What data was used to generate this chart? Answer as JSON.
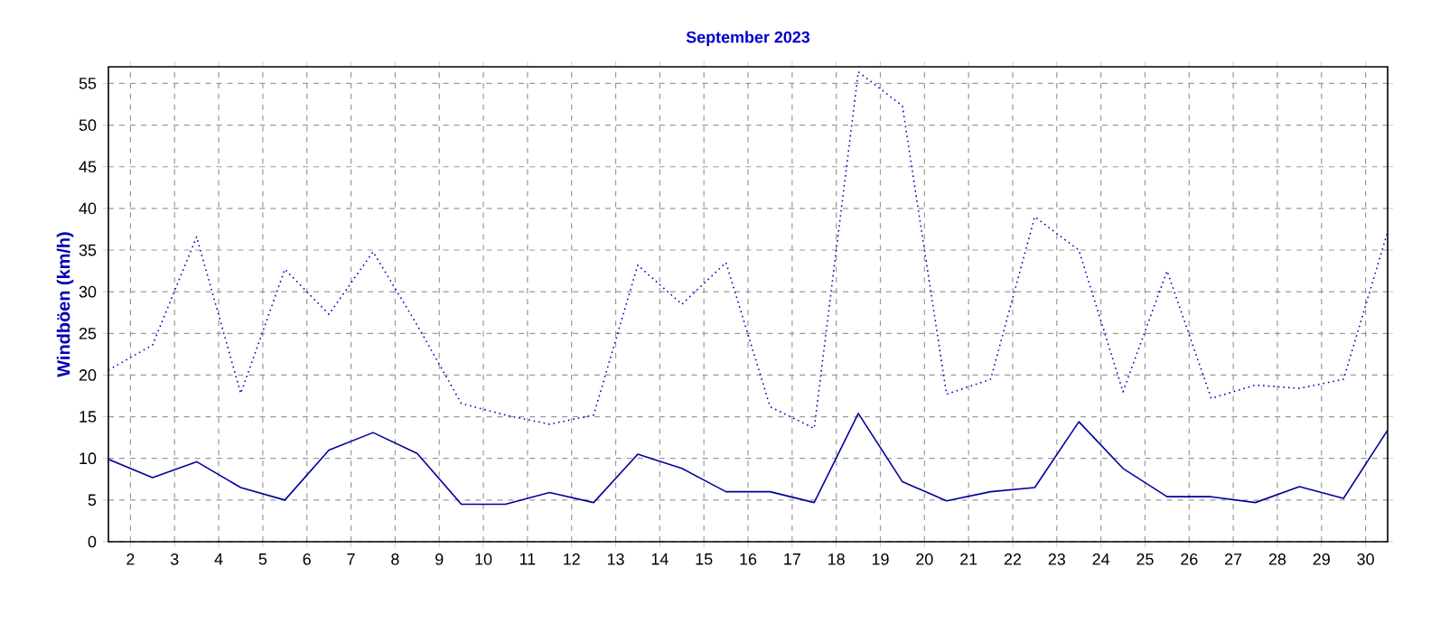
{
  "chart_data": {
    "type": "line",
    "title": "September 2023",
    "ylabel": "Windböen  (km/h)",
    "x": [
      1.5,
      2.5,
      3.5,
      4.5,
      5.5,
      6.5,
      7.5,
      8.5,
      9.5,
      10.5,
      11.5,
      12.5,
      13.5,
      14.5,
      15.5,
      16.5,
      17.5,
      18.5,
      19.5,
      20.5,
      21.5,
      22.5,
      23.5,
      24.5,
      25.5,
      26.5,
      27.5,
      28.5,
      29.5,
      30.5
    ],
    "series": [
      {
        "color": "#0000c0",
        "line_style": "dotted",
        "values": [
          20.6,
          23.6,
          36.6,
          17.8,
          32.7,
          27.3,
          34.8,
          26,
          16.6,
          15.2,
          14.1,
          15.2,
          33.2,
          28.5,
          33.5,
          16.2,
          13.6,
          56.4,
          52.3,
          17.7,
          19.5,
          39.0,
          35.0,
          18.0,
          32.5,
          17.2,
          18.8,
          18.4,
          19.5,
          37.2
        ]
      },
      {
        "color": "#00009c",
        "line_style": "solid",
        "values": [
          9.9,
          7.7,
          9.6,
          6.5,
          5.0,
          11.0,
          13.1,
          10.6,
          4.5,
          4.5,
          5.9,
          4.7,
          10.5,
          8.8,
          6.0,
          6.0,
          4.7,
          15.4,
          7.2,
          4.9,
          6.0,
          6.5,
          14.4,
          8.8,
          5.4,
          5.4,
          4.7,
          6.6,
          5.2,
          13.4
        ]
      }
    ],
    "xlim": [
      1.5,
      30.5
    ],
    "ylim": [
      0,
      57
    ],
    "xticks": [
      2,
      3,
      4,
      5,
      6,
      7,
      8,
      9,
      10,
      11,
      12,
      13,
      14,
      15,
      16,
      17,
      18,
      19,
      20,
      21,
      22,
      23,
      24,
      25,
      26,
      27,
      28,
      29,
      30
    ],
    "yticks": [
      0,
      5,
      10,
      15,
      20,
      25,
      30,
      35,
      40,
      45,
      50,
      55
    ],
    "grid": true
  }
}
